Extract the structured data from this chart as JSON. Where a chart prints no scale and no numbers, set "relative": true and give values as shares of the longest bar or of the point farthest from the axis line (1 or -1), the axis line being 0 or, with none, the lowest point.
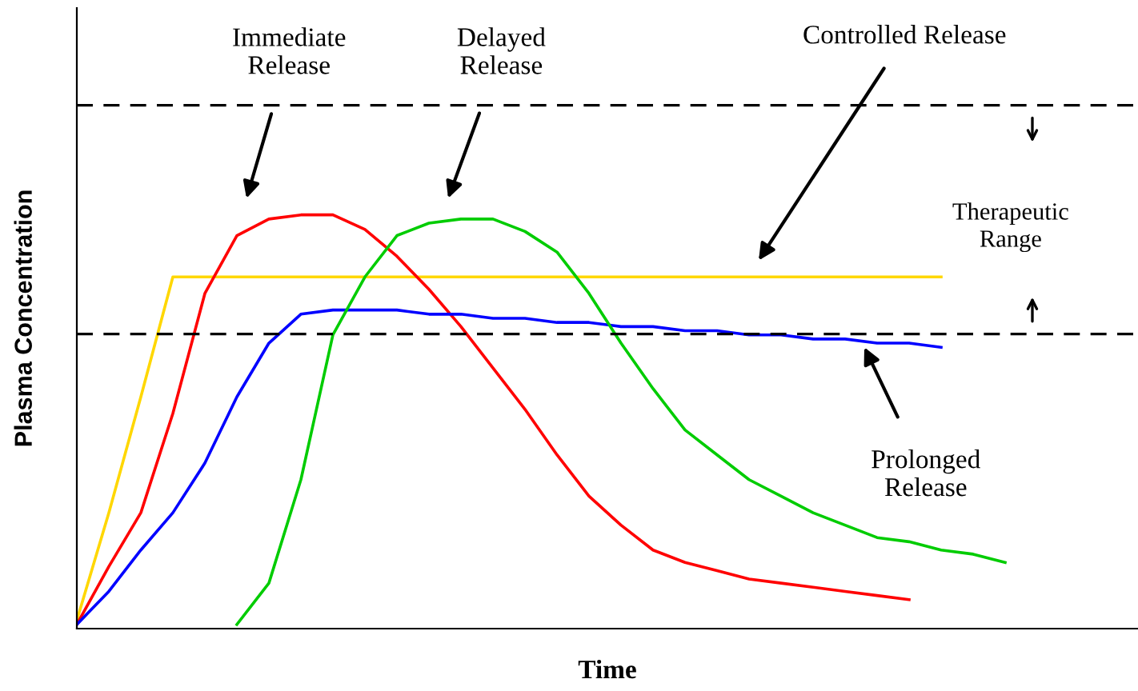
{
  "chart_data": {
    "type": "line",
    "relative": true,
    "xlabel": "Time",
    "ylabel": "Plasma Concentration",
    "categories": [
      null,
      null,
      null,
      null,
      null,
      null,
      null,
      null,
      null,
      null,
      null,
      null,
      null,
      null,
      null,
      null,
      null,
      null,
      null,
      null,
      null,
      null,
      null,
      null,
      null,
      null,
      null,
      null,
      null,
      null
    ],
    "series": [
      {
        "color": "#ffd700",
        "values": [
          0.02,
          0.28,
          0.56,
          0.85,
          0.85,
          0.85,
          0.85,
          0.85,
          0.85,
          0.85,
          0.85,
          0.85,
          0.85,
          0.85,
          0.85,
          0.85,
          0.85,
          0.85,
          0.85,
          0.85,
          0.85,
          0.85,
          0.85,
          0.85,
          0.85,
          0.85,
          0.85,
          0.85,
          null,
          null
        ]
      },
      {
        "color": "#ff0000",
        "values": [
          0.01,
          0.15,
          0.28,
          0.52,
          0.81,
          0.95,
          0.99,
          1,
          1,
          0.965,
          0.9,
          0.82,
          0.73,
          0.63,
          0.53,
          0.42,
          0.32,
          0.25,
          0.19,
          0.16,
          0.14,
          0.12,
          0.11,
          0.1,
          0.09,
          0.08,
          0.07,
          null,
          null,
          null
        ]
      },
      {
        "color": "#0000ff",
        "values": [
          0.01,
          0.09,
          0.19,
          0.28,
          0.4,
          0.56,
          0.69,
          0.76,
          0.77,
          0.77,
          0.77,
          0.76,
          0.76,
          0.75,
          0.75,
          0.74,
          0.74,
          0.73,
          0.73,
          0.72,
          0.72,
          0.71,
          0.71,
          0.7,
          0.7,
          0.69,
          0.69,
          0.68,
          null,
          null
        ]
      },
      {
        "color": "#00cc00",
        "values": [
          null,
          null,
          null,
          null,
          null,
          0.01,
          0.11,
          0.36,
          0.71,
          0.85,
          0.95,
          0.98,
          0.99,
          0.99,
          0.96,
          0.91,
          0.81,
          0.69,
          0.58,
          0.48,
          0.42,
          0.36,
          0.32,
          0.28,
          0.25,
          0.22,
          0.21,
          0.19,
          0.18,
          0.16
        ]
      }
    ],
    "ref_lines": [
      {
        "axis": "y",
        "value": 1.265,
        "color": "#000000",
        "line_style": "dashed"
      },
      {
        "axis": "y",
        "value": 0.712,
        "color": "#000000",
        "line_style": "dashed"
      }
    ],
    "annotations": [
      "Immediate\nRelease",
      "Delayed\nRelease",
      "Controlled Release",
      "Prolonged\nRelease",
      "Therapeutic\nRange"
    ],
    "grid": false,
    "legend": false,
    "marker": "none",
    "line_style": "solid"
  }
}
